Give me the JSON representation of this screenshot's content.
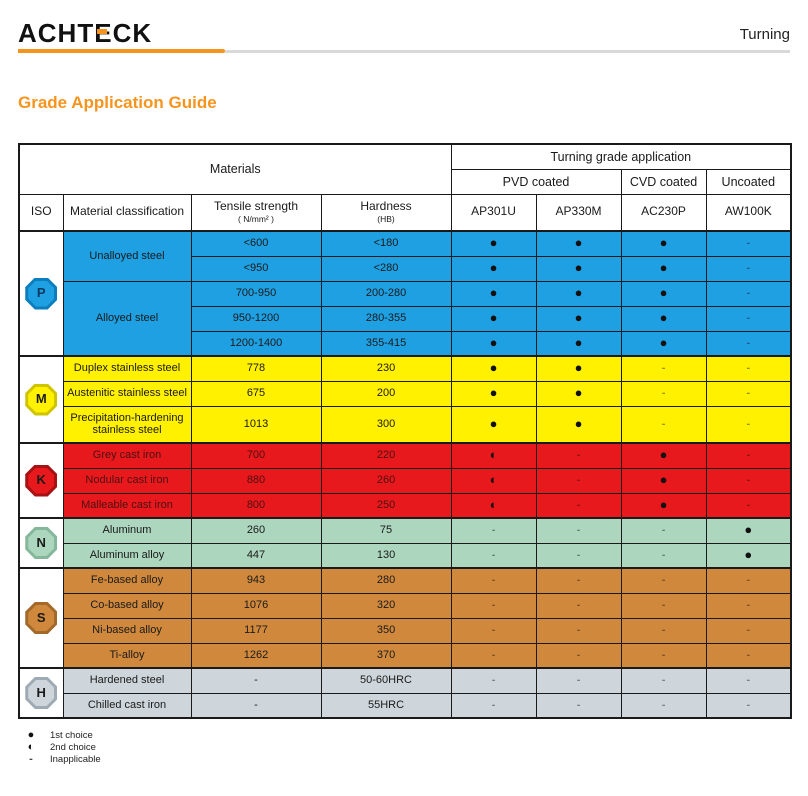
{
  "header": {
    "brand": {
      "part1": "ACHT",
      "e": "E",
      "part2": "CK"
    },
    "page_label": "Turning"
  },
  "title": "Grade Application Guide",
  "accent_color": "#F7941D",
  "table": {
    "materials_header": "Materials",
    "application_header": "Turning grade application",
    "coating_groups": [
      {
        "label": "PVD coated",
        "span": 2
      },
      {
        "label": "CVD coated",
        "span": 1
      },
      {
        "label": "Uncoated",
        "span": 1
      }
    ],
    "columns": {
      "iso": "ISO",
      "classification": "Material classification",
      "tensile": "Tensile strength",
      "tensile_unit": "( N/mm² )",
      "hardness": "Hardness",
      "hardness_unit": "(HB)"
    },
    "grades": [
      "AP301U",
      "AP330M",
      "AC230P",
      "AW100K"
    ],
    "sections": [
      {
        "iso": "P",
        "color": "#1FA0E2",
        "border_color": "#0C7EBE",
        "letter_color": "#0B3A5F",
        "rows": [
          {
            "cls": "Unalloyed steel",
            "cls_span": 2,
            "tensile": "<600",
            "hardness": "<180",
            "marks": [
              "●",
              "●",
              "●",
              "-"
            ]
          },
          {
            "tensile": "<950",
            "hardness": "<280",
            "marks": [
              "●",
              "●",
              "●",
              "-"
            ]
          },
          {
            "cls": "Alloyed steel",
            "cls_span": 3,
            "tensile": "700-950",
            "hardness": "200-280",
            "marks": [
              "●",
              "●",
              "●",
              "-"
            ]
          },
          {
            "tensile": "950-1200",
            "hardness": "280-355",
            "marks": [
              "●",
              "●",
              "●",
              "-"
            ]
          },
          {
            "tensile": "1200-1400",
            "hardness": "355-415",
            "marks": [
              "●",
              "●",
              "●",
              "-"
            ]
          }
        ]
      },
      {
        "iso": "M",
        "color": "#FFF100",
        "border_color": "#CFC400",
        "letter_color": "#1a1a1a",
        "rows": [
          {
            "cls": "Duplex stainless steel",
            "tensile": "778",
            "hardness": "230",
            "marks": [
              "●",
              "●",
              "-",
              "-"
            ]
          },
          {
            "cls": "Austenitic stainless steel",
            "tensile": "675",
            "hardness": "200",
            "marks": [
              "●",
              "●",
              "-",
              "-"
            ]
          },
          {
            "cls": "Precipitation-hardening stainless steel",
            "tensile": "1013",
            "hardness": "300",
            "marks": [
              "●",
              "●",
              "-",
              "-"
            ],
            "tall": true
          }
        ]
      },
      {
        "iso": "K",
        "color": "#E8191D",
        "border_color": "#A61114",
        "letter_color": "#1a1a1a",
        "text_color": "#4d0f10",
        "rows": [
          {
            "cls": "Grey cast iron",
            "tensile": "700",
            "hardness": "220",
            "marks": [
              "◐",
              "-",
              "●",
              "-"
            ]
          },
          {
            "cls": "Nodular cast iron",
            "tensile": "880",
            "hardness": "260",
            "marks": [
              "◐",
              "-",
              "●",
              "-"
            ]
          },
          {
            "cls": "Malleable cast iron",
            "tensile": "800",
            "hardness": "250",
            "marks": [
              "◐",
              "-",
              "●",
              "-"
            ]
          }
        ]
      },
      {
        "iso": "N",
        "color": "#ACD6BE",
        "border_color": "#85B79B",
        "letter_color": "#1a1a1a",
        "rows": [
          {
            "cls": "Aluminum",
            "tensile": "260",
            "hardness": "75",
            "marks": [
              "-",
              "-",
              "-",
              "●"
            ]
          },
          {
            "cls": "Aluminum alloy",
            "tensile": "447",
            "hardness": "130",
            "marks": [
              "-",
              "-",
              "-",
              "●"
            ]
          }
        ]
      },
      {
        "iso": "S",
        "color": "#D0883C",
        "border_color": "#A3692A",
        "letter_color": "#1a1a1a",
        "rows": [
          {
            "cls": "Fe-based alloy",
            "tensile": "943",
            "hardness": "280",
            "marks": [
              "-",
              "-",
              "-",
              "-"
            ]
          },
          {
            "cls": "Co-based alloy",
            "tensile": "1076",
            "hardness": "320",
            "marks": [
              "-",
              "-",
              "-",
              "-"
            ]
          },
          {
            "cls": "Ni-based alloy",
            "tensile": "1177",
            "hardness": "350",
            "marks": [
              "-",
              "-",
              "-",
              "-"
            ]
          },
          {
            "cls": "Ti-alloy",
            "tensile": "1262",
            "hardness": "370",
            "marks": [
              "-",
              "-",
              "-",
              "-"
            ]
          }
        ]
      },
      {
        "iso": "H",
        "color": "#CED6DC",
        "border_color": "#9FABB4",
        "letter_color": "#1a1a1a",
        "rows": [
          {
            "cls": "Hardened steel",
            "tensile": "-",
            "hardness": "50-60HRC",
            "marks": [
              "-",
              "-",
              "-",
              "-"
            ]
          },
          {
            "cls": "Chilled cast iron",
            "tensile": "-",
            "hardness": "55HRC",
            "marks": [
              "-",
              "-",
              "-",
              "-"
            ]
          }
        ]
      }
    ]
  },
  "legend": [
    {
      "symbol": "●",
      "label": "1st choice"
    },
    {
      "symbol": "◐",
      "label": "2nd choice"
    },
    {
      "symbol": "-",
      "label": "Inapplicable"
    }
  ]
}
